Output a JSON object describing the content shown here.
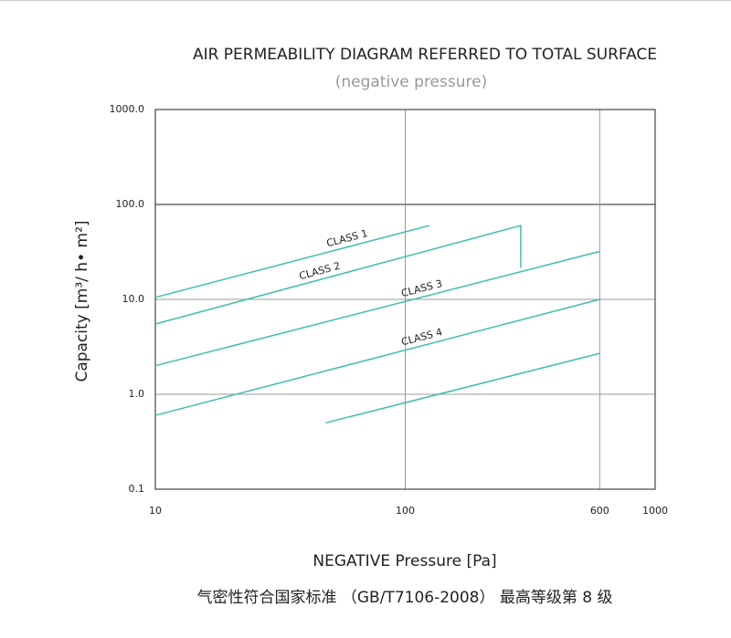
{
  "chart_data": {
    "type": "line",
    "title": "AIR PERMEABILITY DIAGRAM REFERRED TO TOTAL SURFACE",
    "subtitle": "(negative pressure)",
    "x_label": "NEGATIVE Pressure [Pa]",
    "y_label": "Capacity [m³/ h• m²]",
    "footnote": "气密性符合国家标准 （GB/T7106-2008） 最高等级第 8 级",
    "x_scale": "log",
    "y_scale": "log",
    "xlim": [
      10,
      1000
    ],
    "ylim": [
      0.1,
      1000
    ],
    "xticks": [
      10,
      100,
      600,
      1000
    ],
    "yticks": [
      {
        "value": 1000,
        "label": "1000.0"
      },
      {
        "value": 100,
        "label": "100.0"
      },
      {
        "value": 10,
        "label": "10.0"
      },
      {
        "value": 1,
        "label": "1.0"
      },
      0.1
    ],
    "grid": true,
    "series": [
      {
        "name": "CLASS 1",
        "color": "#3fbfae",
        "x": [
          10,
          125
        ],
        "values": [
          10.5,
          60
        ]
      },
      {
        "name": "CLASS 2",
        "color": "#3fbfae",
        "x": [
          10,
          290,
          290
        ],
        "values": [
          5.5,
          60,
          21.5
        ]
      },
      {
        "name": "CLASS 3",
        "color": "#3fbfae",
        "x": [
          10,
          600
        ],
        "values": [
          2.0,
          32
        ]
      },
      {
        "name": "CLASS 4",
        "color": "#3fbfae",
        "x": [
          10,
          600
        ],
        "values": [
          0.6,
          10
        ]
      },
      {
        "color": "#3fbfae",
        "x": [
          48,
          600
        ],
        "values": [
          0.5,
          2.7
        ]
      }
    ]
  }
}
